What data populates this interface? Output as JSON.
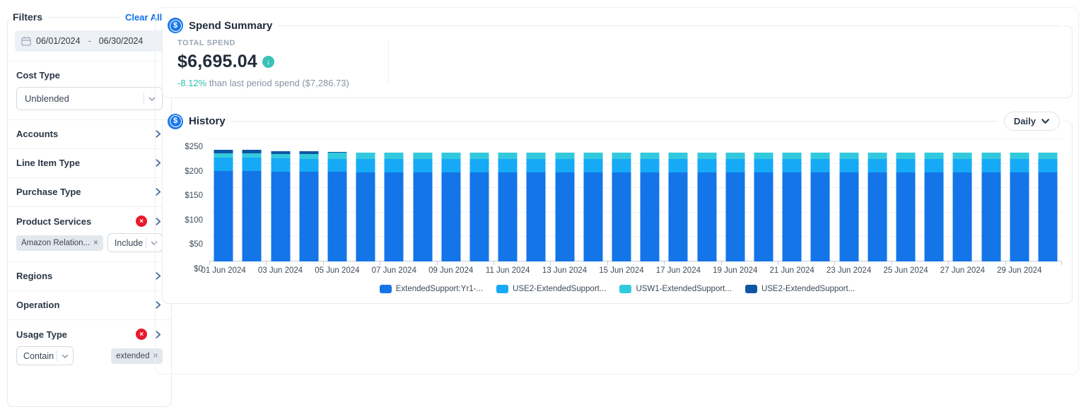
{
  "ui": {
    "chip_close": "×",
    "badge_glyph": "×",
    "coin_glyph": "$",
    "delta_arrow": "↓"
  },
  "filters": {
    "title": "Filters",
    "clear_all": "Clear All",
    "date_start": "06/01/2024",
    "date_sep": "-",
    "date_end": "06/30/2024",
    "cost_type_label": "Cost Type",
    "cost_type_value": "Unblended",
    "accounts_label": "Accounts",
    "line_item_type_label": "Line Item Type",
    "purchase_type_label": "Purchase Type",
    "product_services_label": "Product Services",
    "product_services_chip": "Amazon Relation...",
    "product_services_operator": "Include",
    "regions_label": "Regions",
    "operation_label": "Operation",
    "usage_type_label": "Usage Type",
    "usage_type_operator": "Contain",
    "usage_type_chip": "extended"
  },
  "spend_summary": {
    "title": "Spend Summary",
    "total_label": "TOTAL SPEND",
    "total_value": "$6,695.04",
    "delta_pct": "-8.12%",
    "delta_rest": " than last period spend ($7,286.73)"
  },
  "history": {
    "title": "History",
    "granularity": "Daily"
  },
  "chart_data": {
    "type": "bar",
    "stacked": true,
    "title": "History",
    "ylim": [
      0,
      250
    ],
    "yticks": [
      "$0",
      "$50",
      "$100",
      "$150",
      "$200",
      "$250"
    ],
    "xlabel_every": 2,
    "categories": [
      "01 Jun 2024",
      "02 Jun 2024",
      "03 Jun 2024",
      "04 Jun 2024",
      "05 Jun 2024",
      "06 Jun 2024",
      "07 Jun 2024",
      "08 Jun 2024",
      "09 Jun 2024",
      "10 Jun 2024",
      "11 Jun 2024",
      "12 Jun 2024",
      "13 Jun 2024",
      "14 Jun 2024",
      "15 Jun 2024",
      "16 Jun 2024",
      "17 Jun 2024",
      "18 Jun 2024",
      "19 Jun 2024",
      "20 Jun 2024",
      "21 Jun 2024",
      "22 Jun 2024",
      "23 Jun 2024",
      "24 Jun 2024",
      "25 Jun 2024",
      "26 Jun 2024",
      "27 Jun 2024",
      "28 Jun 2024",
      "29 Jun 2024",
      "30 Jun 2024"
    ],
    "series": [
      {
        "name": "ExtendedSupport:Yr1-...",
        "color": "#1375e8",
        "values": [
          185,
          185,
          184,
          183,
          183,
          182,
          182,
          182,
          182,
          182,
          182,
          182,
          182,
          182,
          182,
          182,
          182,
          182,
          182,
          182,
          182,
          182,
          182,
          182,
          182,
          182,
          182,
          182,
          182,
          182
        ]
      },
      {
        "name": "USE2-ExtendedSupport...",
        "color": "#16aaf6",
        "values": [
          28,
          28,
          27,
          27,
          26,
          28,
          28,
          28,
          28,
          28,
          28,
          28,
          28,
          28,
          28,
          28,
          28,
          28,
          28,
          28,
          28,
          28,
          28,
          28,
          28,
          28,
          28,
          28,
          28,
          28
        ]
      },
      {
        "name": "USW1-ExtendedSupport...",
        "color": "#33c9dd",
        "values": [
          8,
          8,
          9,
          10,
          13,
          13,
          13,
          13,
          13,
          13,
          13,
          13,
          13,
          13,
          13,
          13,
          13,
          13,
          13,
          13,
          13,
          13,
          13,
          13,
          13,
          13,
          13,
          13,
          13,
          13
        ]
      },
      {
        "name": "USE2-ExtendedSupport...",
        "color": "#0e56a3",
        "values": [
          7,
          7,
          6,
          5,
          2,
          0,
          0,
          0,
          0,
          0,
          0,
          0,
          0,
          0,
          0,
          0,
          0,
          0,
          0,
          0,
          0,
          0,
          0,
          0,
          0,
          0,
          0,
          0,
          0,
          0
        ]
      }
    ],
    "legend_position": "bottom",
    "grid": true
  }
}
